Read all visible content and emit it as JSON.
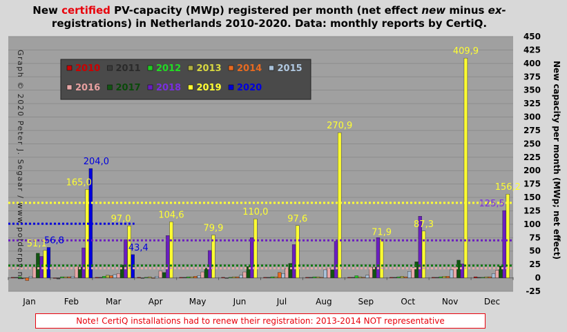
{
  "title": {
    "part1": "New ",
    "highlight": "certified",
    "part2": " PV-capacity (MWp) registered per month (net effect ",
    "italic1": "new",
    "part3": " minus ",
    "italic2": "ex-",
    "line2": "registrations) in Netherlands 2010-2020. Data: monthly reports by CertiQ."
  },
  "credit": "Graph © 2020 Peter J. Segaar / www.polderpv.nl",
  "note": "Note! CertiQ installations  had to renew their registration: 2013-2014  NOT representative",
  "chart_data": {
    "type": "bar",
    "ylabel": "New capacity per month (MWp; net effect)",
    "ylim": [
      -25,
      450
    ],
    "yticks": [
      -25,
      0,
      25,
      50,
      75,
      100,
      125,
      150,
      175,
      200,
      225,
      250,
      275,
      300,
      325,
      350,
      375,
      400,
      425,
      450
    ],
    "grid": true,
    "legend_position": "top-left",
    "categories": [
      "Jan",
      "Feb",
      "Mar",
      "Apr",
      "May",
      "Jun",
      "Jul",
      "Aug",
      "Sep",
      "Oct",
      "Nov",
      "Dec"
    ],
    "series": [
      {
        "name": "2010",
        "color": "#cc0000",
        "label_color": "#cc0000",
        "values": [
          1,
          0,
          1,
          1,
          1,
          1,
          1,
          1,
          1,
          1,
          1,
          2
        ]
      },
      {
        "name": "2011",
        "color": "#3c3c3c",
        "label_color": "#2a2a2a",
        "values": [
          1,
          -2,
          1,
          0,
          1,
          0,
          1,
          1,
          1,
          1,
          1,
          1
        ]
      },
      {
        "name": "2012",
        "color": "#22cc22",
        "label_color": "#22dd22",
        "values": [
          2,
          2,
          3,
          1,
          2,
          1,
          2,
          2,
          4,
          2,
          2,
          1
        ]
      },
      {
        "name": "2013",
        "color": "#b0b040",
        "label_color": "#d8d840",
        "values": [
          -1,
          2,
          5,
          2,
          2,
          2,
          2,
          2,
          2,
          3,
          3,
          2
        ]
      },
      {
        "name": "2014",
        "color": "#e86a20",
        "label_color": "#e86a20",
        "values": [
          -5,
          2,
          4,
          0,
          3,
          2,
          10,
          1,
          1,
          2,
          3,
          2
        ]
      },
      {
        "name": "2015",
        "color": "#a8c0d8",
        "label_color": "#b0c8e0",
        "values": [
          3,
          3,
          6,
          3,
          4,
          5,
          8,
          15,
          5,
          12,
          15,
          8
        ]
      },
      {
        "name": "2016",
        "color": "#e8a8a8",
        "label_color": "#e8a0a0",
        "values": [
          20,
          22,
          8,
          13,
          11,
          11,
          17,
          18,
          20,
          19,
          20,
          14
        ]
      },
      {
        "name": "2017",
        "color": "#115511",
        "label_color": "#0a4a0a",
        "values": [
          46,
          20,
          24,
          10,
          18,
          21,
          27,
          15,
          20,
          30,
          33,
          22
        ]
      },
      {
        "name": "2018",
        "color": "#6a1ec0",
        "label_color": "#7a2ee0",
        "values": [
          40,
          56,
          71,
          79,
          51,
          75,
          62,
          68,
          75,
          115,
          26,
          125.5
        ]
      },
      {
        "name": "2019",
        "color": "#ffff33",
        "label_color": "#ffff33",
        "values": [
          51.1,
          165.0,
          97.0,
          104.6,
          79.9,
          110.0,
          97.6,
          270.9,
          71.9,
          87.3,
          409.9,
          156.2
        ]
      },
      {
        "name": "2020",
        "color": "#0000dd",
        "label_color": "#0000dd",
        "values": [
          56.8,
          204.0,
          43.4,
          null,
          null,
          null,
          null,
          null,
          null,
          null,
          null,
          null
        ]
      }
    ],
    "value_labels": [
      {
        "text": "51,1",
        "month": 0,
        "series": 9,
        "color": "#ffff33"
      },
      {
        "text": "56,8",
        "month": 0,
        "series": 10,
        "color": "#0000dd"
      },
      {
        "text": "165,0",
        "month": 1,
        "series": 9,
        "color": "#ffff33"
      },
      {
        "text": "204,0",
        "month": 1,
        "series": 10,
        "color": "#0000dd"
      },
      {
        "text": "97,0",
        "month": 2,
        "series": 9,
        "color": "#ffff33"
      },
      {
        "text": "43,4",
        "month": 2,
        "series": 10,
        "color": "#0000dd"
      },
      {
        "text": "104,6",
        "month": 3,
        "series": 9,
        "color": "#ffff33"
      },
      {
        "text": "79,9",
        "month": 4,
        "series": 9,
        "color": "#ffff33"
      },
      {
        "text": "110,0",
        "month": 5,
        "series": 9,
        "color": "#ffff33"
      },
      {
        "text": "97,6",
        "month": 6,
        "series": 9,
        "color": "#ffff33"
      },
      {
        "text": "270,9",
        "month": 7,
        "series": 9,
        "color": "#ffff33"
      },
      {
        "text": "71,9",
        "month": 8,
        "series": 9,
        "color": "#ffff33"
      },
      {
        "text": "87,3",
        "month": 9,
        "series": 9,
        "color": "#ffff33"
      },
      {
        "text": "409,9",
        "month": 10,
        "series": 9,
        "color": "#ffff33"
      },
      {
        "text": "156,2",
        "month": 11,
        "series": 9,
        "color": "#ffff33"
      },
      {
        "text": "125,5",
        "month": 11,
        "series": 8,
        "color": "#7a2ee0"
      }
    ],
    "reference_lines": [
      {
        "value": 140,
        "color": "#ffff33",
        "from_month": 0,
        "to_month": 11
      },
      {
        "value": 101,
        "color": "#0000dd",
        "from_month": 0,
        "to_month": 2
      },
      {
        "value": 70,
        "color": "#6a1ec0",
        "from_month": 0,
        "to_month": 11
      },
      {
        "value": 23,
        "color": "#117711",
        "from_month": 0,
        "to_month": 11
      },
      {
        "value": 18,
        "color": "#e8a8a8",
        "from_month": 0,
        "to_month": 11
      }
    ]
  }
}
